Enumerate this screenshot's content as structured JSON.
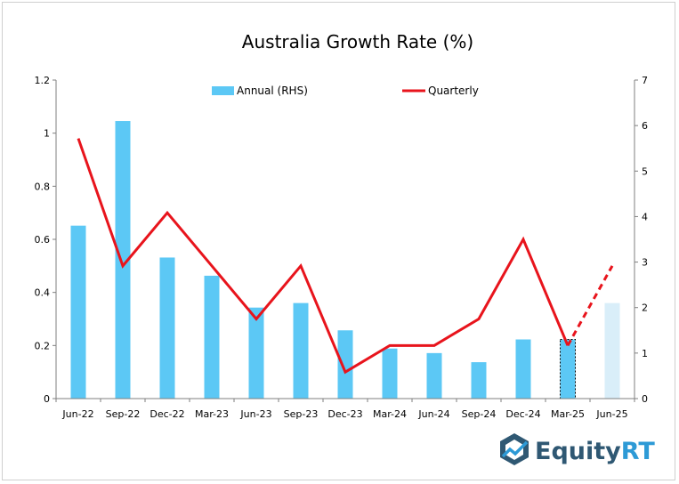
{
  "chart_data": {
    "type": "bar",
    "title": "Australia Growth Rate (%)",
    "categories": [
      "Jun-22",
      "Sep-22",
      "Dec-22",
      "Mar-23",
      "Jun-23",
      "Sep-23",
      "Dec-23",
      "Mar-24",
      "Jun-24",
      "Sep-24",
      "Dec-24",
      "Mar-25",
      "Jun-25"
    ],
    "series": [
      {
        "name": "Annual (RHS)",
        "axis": "right",
        "kind": "bar",
        "color": "#5cc8f5",
        "values": [
          3.8,
          6.1,
          3.1,
          2.7,
          2.0,
          2.1,
          1.5,
          1.1,
          1.0,
          0.8,
          1.3,
          1.3,
          2.1
        ],
        "estimate_from_index": 11
      },
      {
        "name": "Quarterly",
        "axis": "left",
        "kind": "line",
        "color": "#e8141c",
        "values": [
          0.98,
          0.5,
          0.7,
          0.5,
          0.3,
          0.5,
          0.1,
          0.2,
          0.2,
          0.3,
          0.6,
          0.2,
          0.5
        ],
        "dashed_from_index": 11
      }
    ],
    "ylim_left": [
      0,
      1.2
    ],
    "yticks_left": [
      "0",
      "0.2",
      "0.4",
      "0.6",
      "0.8",
      "1",
      "1.2"
    ],
    "ylim_right": [
      0,
      7
    ],
    "yticks_right": [
      "0",
      "1",
      "2",
      "3",
      "4",
      "5",
      "6",
      "7"
    ],
    "grid": false,
    "legend_position": "top-center"
  },
  "branding": {
    "logo_text_main": "Equity",
    "logo_text_accent": "RT",
    "logo_icon": "equityrt-hexagon-icon",
    "colors": {
      "main": "#2f5873",
      "accent": "#2d9ad6"
    }
  }
}
